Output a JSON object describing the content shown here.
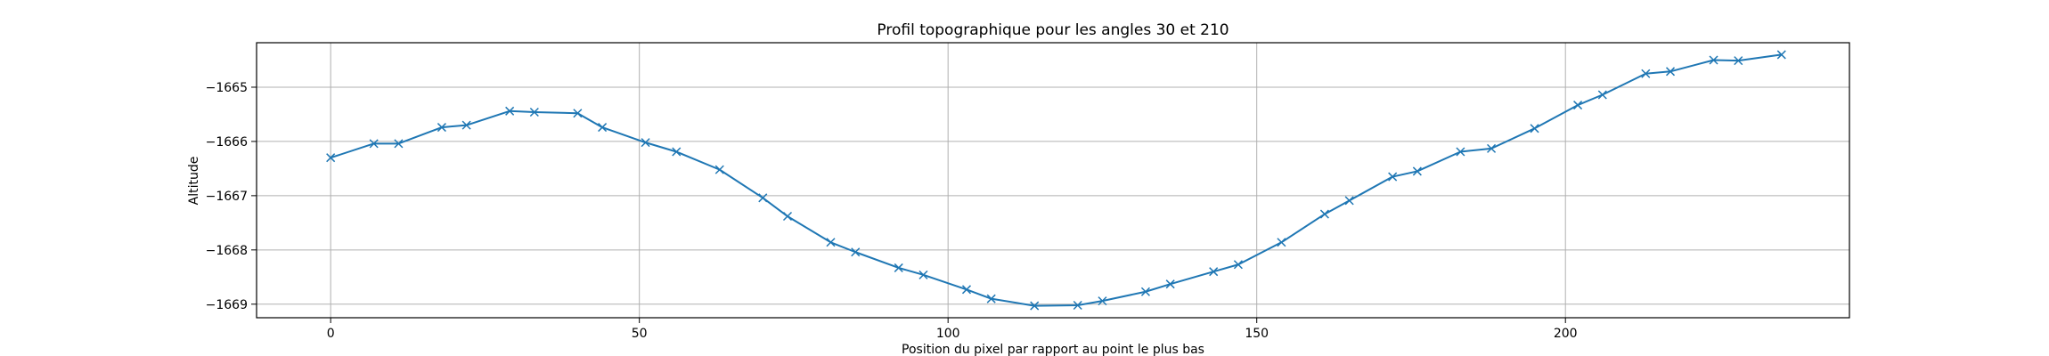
{
  "chart_data": {
    "type": "line",
    "title": "Profil topographique pour les angles 30 et 210",
    "xlabel": "Position du pixel par rapport au point le plus bas",
    "ylabel": "Altitude",
    "xlim": [
      -12,
      246
    ],
    "ylim": [
      -1669.25,
      -1664.18
    ],
    "xticks": [
      0,
      50,
      100,
      150,
      200
    ],
    "yticks": [
      -1669,
      -1668,
      -1667,
      -1666,
      -1665
    ],
    "xtick_labels": [
      "0",
      "50",
      "100",
      "150",
      "200"
    ],
    "ytick_labels": [
      "−1669",
      "−1668",
      "−1667",
      "−1666",
      "−1665"
    ],
    "grid": true,
    "marker": "x",
    "color": "#1f77b4",
    "series": [
      {
        "x": [
          0,
          7,
          11,
          18,
          22,
          29,
          33,
          40,
          44,
          51,
          56,
          63,
          70,
          74,
          81,
          85,
          92,
          96,
          103,
          107,
          114,
          121,
          125,
          132,
          136,
          143,
          147,
          154,
          161,
          165,
          172,
          176,
          183,
          188,
          195,
          202,
          206,
          213,
          217,
          224,
          228,
          235
        ],
        "y": [
          -1666.3,
          -1666.04,
          -1666.04,
          -1665.74,
          -1665.7,
          -1665.44,
          -1665.46,
          -1665.48,
          -1665.74,
          -1666.02,
          -1666.19,
          -1666.52,
          -1667.04,
          -1667.38,
          -1667.86,
          -1668.04,
          -1668.33,
          -1668.46,
          -1668.73,
          -1668.9,
          -1669.03,
          -1669.02,
          -1668.94,
          -1668.77,
          -1668.63,
          -1668.4,
          -1668.27,
          -1667.86,
          -1667.34,
          -1667.09,
          -1666.65,
          -1666.55,
          -1666.19,
          -1666.13,
          -1665.76,
          -1665.33,
          -1665.14,
          -1664.75,
          -1664.71,
          -1664.5,
          -1664.51,
          -1664.4
        ]
      }
    ]
  }
}
